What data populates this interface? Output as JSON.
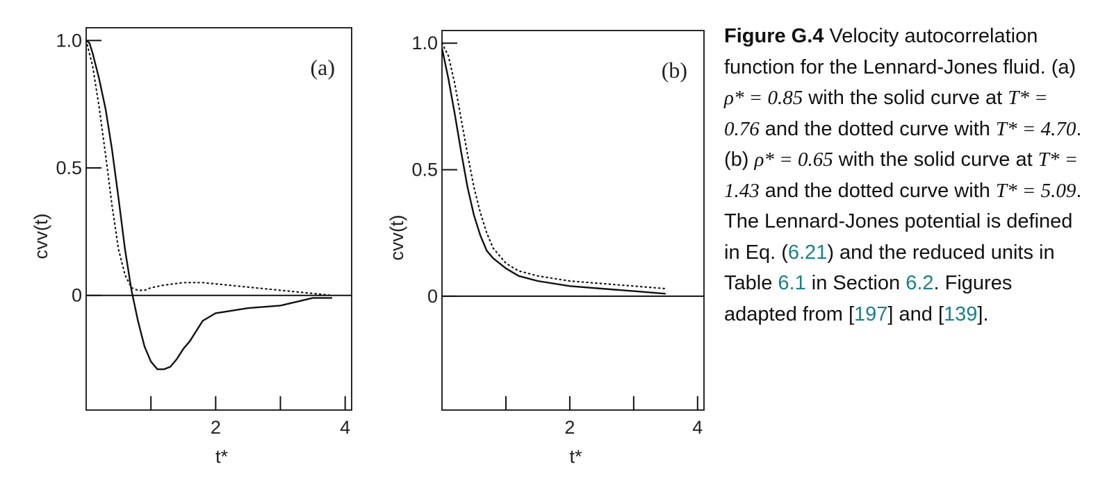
{
  "chart_data": [
    {
      "type": "line",
      "panel_label": "(a)",
      "xlabel": "t*",
      "ylabel": "cvv(t)",
      "xlim": [
        0,
        4.1
      ],
      "ylim": [
        -0.45,
        1.05
      ],
      "xticks": [
        1,
        2,
        3,
        4
      ],
      "xtick_labels": [
        "2",
        "4"
      ],
      "xtick_label_values": [
        2,
        4
      ],
      "yticks": [
        0,
        0.5,
        1.0
      ],
      "ytick_labels": [
        "0",
        "0.5",
        "1.0"
      ],
      "series": [
        {
          "style": "solid",
          "x": [
            0,
            0.05,
            0.1,
            0.2,
            0.3,
            0.4,
            0.5,
            0.6,
            0.7,
            0.8,
            0.9,
            1.0,
            1.1,
            1.2,
            1.3,
            1.4,
            1.5,
            1.6,
            1.8,
            2.0,
            2.5,
            3.0,
            3.5,
            3.8
          ],
          "y": [
            1.0,
            0.99,
            0.95,
            0.85,
            0.73,
            0.57,
            0.38,
            0.18,
            0.02,
            -0.1,
            -0.2,
            -0.26,
            -0.29,
            -0.29,
            -0.28,
            -0.25,
            -0.21,
            -0.18,
            -0.1,
            -0.07,
            -0.05,
            -0.04,
            -0.01,
            -0.01
          ]
        },
        {
          "style": "dotted",
          "x": [
            0,
            0.1,
            0.2,
            0.3,
            0.4,
            0.5,
            0.6,
            0.7,
            0.8,
            0.9,
            1.0,
            1.2,
            1.5,
            1.8,
            2.2,
            2.6,
            3.0,
            3.4,
            3.8
          ],
          "y": [
            1.0,
            0.9,
            0.74,
            0.55,
            0.35,
            0.18,
            0.08,
            0.03,
            0.02,
            0.02,
            0.03,
            0.04,
            0.05,
            0.05,
            0.04,
            0.03,
            0.02,
            0.01,
            0.0
          ]
        }
      ]
    },
    {
      "type": "line",
      "panel_label": "(b)",
      "xlabel": "t*",
      "ylabel": "cvv(t)",
      "xlim": [
        0,
        4.1
      ],
      "ylim": [
        -0.45,
        1.05
      ],
      "xticks": [
        1,
        2,
        3,
        4
      ],
      "xtick_labels": [
        "2",
        "4"
      ],
      "xtick_label_values": [
        2,
        4
      ],
      "yticks": [
        0,
        0.5,
        1.0
      ],
      "ytick_labels": [
        "0",
        "0.5",
        "1.0"
      ],
      "series": [
        {
          "style": "solid",
          "x": [
            0,
            0.1,
            0.2,
            0.3,
            0.4,
            0.5,
            0.6,
            0.7,
            0.8,
            1.0,
            1.2,
            1.5,
            2.0,
            2.5,
            3.0,
            3.5
          ],
          "y": [
            0.98,
            0.86,
            0.72,
            0.57,
            0.43,
            0.32,
            0.24,
            0.18,
            0.15,
            0.11,
            0.08,
            0.06,
            0.04,
            0.03,
            0.02,
            0.01
          ]
        },
        {
          "style": "dotted",
          "x": [
            0,
            0.1,
            0.2,
            0.3,
            0.4,
            0.5,
            0.6,
            0.7,
            0.8,
            1.0,
            1.2,
            1.5,
            2.0,
            2.5,
            3.0,
            3.5
          ],
          "y": [
            1.0,
            0.95,
            0.84,
            0.7,
            0.56,
            0.43,
            0.33,
            0.25,
            0.19,
            0.13,
            0.1,
            0.08,
            0.06,
            0.05,
            0.04,
            0.03
          ]
        }
      ]
    }
  ],
  "caption": {
    "figure_label": "Figure G.4",
    "parts": [
      {
        "text": "Velocity autocorrelation function for the Lennard-Jones fluid. (a) "
      },
      {
        "text": "ρ* = 0.85",
        "math": true
      },
      {
        "text": " with the solid curve at "
      },
      {
        "text": "T* = 0.76",
        "math": true
      },
      {
        "text": " and the dotted curve with "
      },
      {
        "text": "T* = 4.70",
        "math": true
      },
      {
        "text": ". (b) "
      },
      {
        "text": "ρ* = 0.65",
        "math": true
      },
      {
        "text": " with the solid curve at "
      },
      {
        "text": "T* = 1.43",
        "math": true
      },
      {
        "text": " and the dotted curve with "
      },
      {
        "text": "T* = 5.09",
        "math": true
      },
      {
        "text": ". The Lennard-Jones potential is defined in Eq. ("
      },
      {
        "text": "6.21",
        "link": true
      },
      {
        "text": ") and the reduced units in Table "
      },
      {
        "text": "6.1",
        "link": true
      },
      {
        "text": " in Section "
      },
      {
        "text": "6.2",
        "link": true
      },
      {
        "text": ". Figures adapted from ["
      },
      {
        "text": "197",
        "link": true
      },
      {
        "text": "] and ["
      },
      {
        "text": "139",
        "link": true
      },
      {
        "text": "]."
      }
    ]
  }
}
